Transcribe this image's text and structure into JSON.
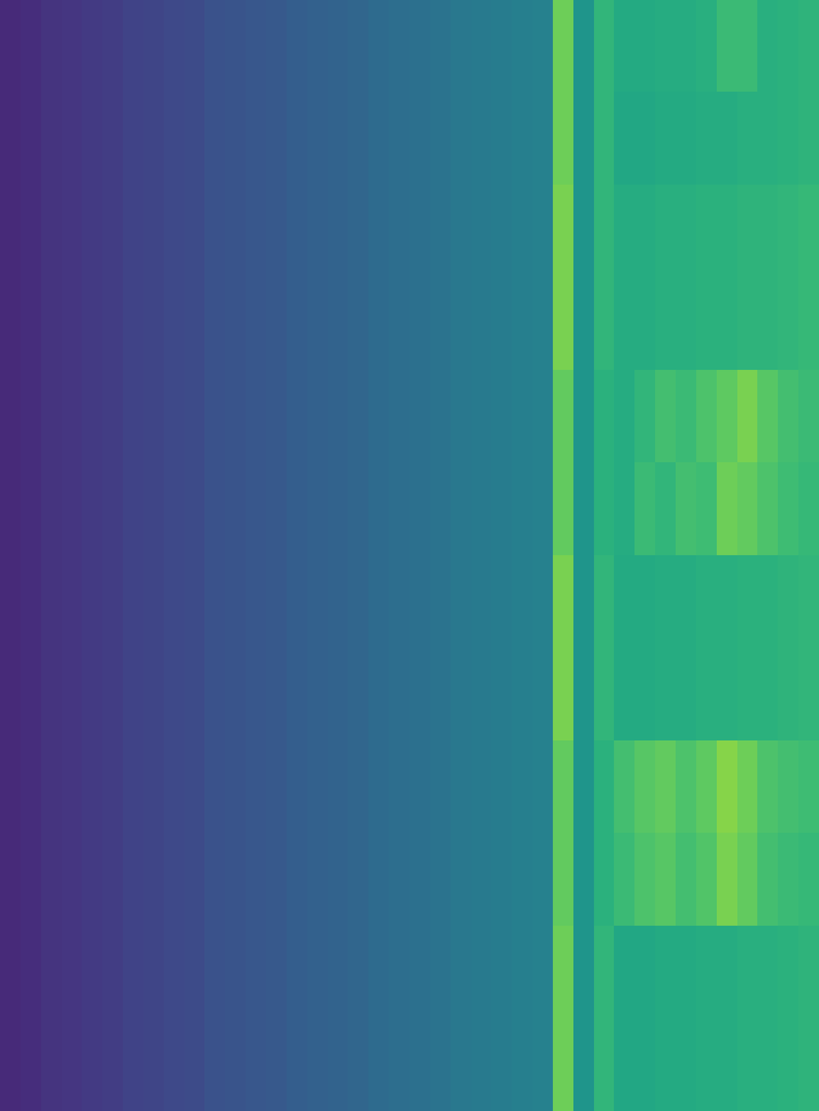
{
  "chart_data": {
    "type": "heatmap",
    "tick_labels": false,
    "color": "viridis",
    "color_range": [
      0,
      1
    ],
    "cells": [
      [
        0.12,
        0.13,
        0.15,
        0.16,
        0.17,
        0.18,
        0.2,
        0.21,
        0.22,
        0.23,
        0.25,
        0.26,
        0.27,
        0.28,
        0.3,
        0.31,
        0.32,
        0.33,
        0.35,
        0.36,
        0.37,
        0.38,
        0.4,
        0.41,
        0.42,
        0.43,
        0.44,
        0.78,
        0.52,
        0.66,
        0.61,
        0.61,
        0.62,
        0.62,
        0.63,
        0.68,
        0.68,
        0.63,
        0.64,
        0.65
      ],
      [
        0.12,
        0.13,
        0.15,
        0.16,
        0.17,
        0.18,
        0.2,
        0.21,
        0.22,
        0.23,
        0.25,
        0.26,
        0.27,
        0.28,
        0.3,
        0.31,
        0.32,
        0.33,
        0.35,
        0.36,
        0.37,
        0.38,
        0.4,
        0.41,
        0.42,
        0.43,
        0.44,
        0.78,
        0.52,
        0.66,
        0.6,
        0.6,
        0.61,
        0.61,
        0.62,
        0.62,
        0.63,
        0.63,
        0.64,
        0.65
      ],
      [
        0.12,
        0.13,
        0.15,
        0.16,
        0.17,
        0.18,
        0.2,
        0.21,
        0.22,
        0.23,
        0.25,
        0.26,
        0.27,
        0.28,
        0.3,
        0.31,
        0.32,
        0.33,
        0.35,
        0.36,
        0.37,
        0.38,
        0.4,
        0.41,
        0.42,
        0.43,
        0.44,
        0.8,
        0.52,
        0.66,
        0.62,
        0.62,
        0.63,
        0.63,
        0.64,
        0.64,
        0.65,
        0.65,
        0.66,
        0.67
      ],
      [
        0.12,
        0.13,
        0.15,
        0.16,
        0.17,
        0.18,
        0.2,
        0.21,
        0.22,
        0.23,
        0.25,
        0.26,
        0.27,
        0.28,
        0.3,
        0.31,
        0.32,
        0.33,
        0.35,
        0.36,
        0.37,
        0.38,
        0.4,
        0.41,
        0.42,
        0.43,
        0.44,
        0.8,
        0.52,
        0.66,
        0.62,
        0.62,
        0.63,
        0.63,
        0.64,
        0.64,
        0.65,
        0.65,
        0.66,
        0.67
      ],
      [
        0.12,
        0.13,
        0.15,
        0.16,
        0.17,
        0.18,
        0.2,
        0.21,
        0.22,
        0.23,
        0.25,
        0.26,
        0.27,
        0.28,
        0.3,
        0.31,
        0.32,
        0.33,
        0.35,
        0.36,
        0.37,
        0.38,
        0.4,
        0.41,
        0.42,
        0.43,
        0.44,
        0.76,
        0.52,
        0.64,
        0.62,
        0.66,
        0.7,
        0.68,
        0.72,
        0.75,
        0.8,
        0.74,
        0.7,
        0.68
      ],
      [
        0.12,
        0.13,
        0.15,
        0.16,
        0.17,
        0.18,
        0.2,
        0.21,
        0.22,
        0.23,
        0.25,
        0.26,
        0.27,
        0.28,
        0.3,
        0.31,
        0.32,
        0.33,
        0.35,
        0.36,
        0.37,
        0.38,
        0.4,
        0.41,
        0.42,
        0.43,
        0.44,
        0.76,
        0.52,
        0.64,
        0.62,
        0.68,
        0.66,
        0.7,
        0.69,
        0.78,
        0.76,
        0.72,
        0.69,
        0.67
      ],
      [
        0.12,
        0.13,
        0.15,
        0.16,
        0.17,
        0.18,
        0.2,
        0.21,
        0.22,
        0.23,
        0.25,
        0.26,
        0.27,
        0.28,
        0.3,
        0.31,
        0.32,
        0.33,
        0.35,
        0.36,
        0.37,
        0.38,
        0.4,
        0.41,
        0.42,
        0.43,
        0.44,
        0.8,
        0.52,
        0.66,
        0.61,
        0.61,
        0.62,
        0.62,
        0.63,
        0.63,
        0.64,
        0.64,
        0.65,
        0.66
      ],
      [
        0.12,
        0.13,
        0.15,
        0.16,
        0.17,
        0.18,
        0.2,
        0.21,
        0.22,
        0.23,
        0.25,
        0.26,
        0.27,
        0.28,
        0.3,
        0.31,
        0.32,
        0.33,
        0.35,
        0.36,
        0.37,
        0.38,
        0.4,
        0.41,
        0.42,
        0.43,
        0.44,
        0.8,
        0.52,
        0.66,
        0.61,
        0.61,
        0.62,
        0.62,
        0.63,
        0.63,
        0.64,
        0.64,
        0.65,
        0.66
      ],
      [
        0.12,
        0.13,
        0.15,
        0.16,
        0.17,
        0.18,
        0.2,
        0.21,
        0.22,
        0.23,
        0.25,
        0.26,
        0.27,
        0.28,
        0.3,
        0.31,
        0.32,
        0.33,
        0.35,
        0.36,
        0.37,
        0.38,
        0.4,
        0.41,
        0.42,
        0.43,
        0.44,
        0.76,
        0.52,
        0.64,
        0.7,
        0.74,
        0.76,
        0.72,
        0.75,
        0.82,
        0.78,
        0.72,
        0.7,
        0.69
      ],
      [
        0.12,
        0.13,
        0.15,
        0.16,
        0.17,
        0.18,
        0.2,
        0.21,
        0.22,
        0.23,
        0.25,
        0.26,
        0.27,
        0.28,
        0.3,
        0.31,
        0.32,
        0.33,
        0.35,
        0.36,
        0.37,
        0.38,
        0.4,
        0.41,
        0.42,
        0.43,
        0.44,
        0.76,
        0.52,
        0.64,
        0.68,
        0.72,
        0.74,
        0.7,
        0.73,
        0.8,
        0.76,
        0.7,
        0.68,
        0.67
      ],
      [
        0.12,
        0.13,
        0.15,
        0.16,
        0.17,
        0.18,
        0.2,
        0.21,
        0.22,
        0.23,
        0.25,
        0.26,
        0.27,
        0.28,
        0.3,
        0.31,
        0.32,
        0.33,
        0.35,
        0.36,
        0.37,
        0.38,
        0.4,
        0.41,
        0.42,
        0.43,
        0.44,
        0.78,
        0.52,
        0.66,
        0.6,
        0.6,
        0.61,
        0.61,
        0.62,
        0.62,
        0.63,
        0.63,
        0.64,
        0.65
      ],
      [
        0.12,
        0.13,
        0.15,
        0.16,
        0.17,
        0.18,
        0.2,
        0.21,
        0.22,
        0.23,
        0.25,
        0.26,
        0.27,
        0.28,
        0.3,
        0.31,
        0.32,
        0.33,
        0.35,
        0.36,
        0.37,
        0.38,
        0.4,
        0.41,
        0.42,
        0.43,
        0.44,
        0.78,
        0.52,
        0.66,
        0.6,
        0.6,
        0.61,
        0.61,
        0.62,
        0.62,
        0.63,
        0.63,
        0.64,
        0.65
      ]
    ]
  }
}
